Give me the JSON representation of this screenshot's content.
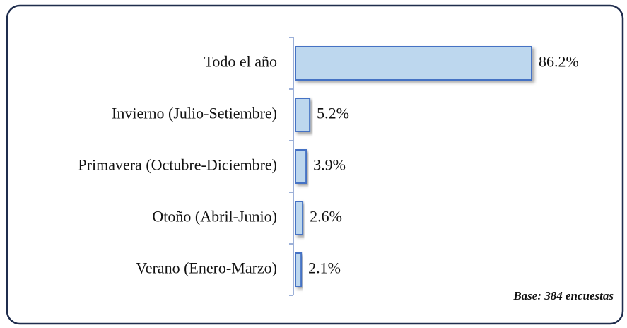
{
  "chart_data": {
    "type": "bar",
    "orientation": "horizontal",
    "categories": [
      "Todo el año",
      "Invierno (Julio-Setiembre)",
      "Primavera (Octubre-Diciembre)",
      "Otoño (Abril-Junio)",
      "Verano (Enero-Marzo)"
    ],
    "values": [
      86.2,
      5.2,
      3.9,
      2.6,
      2.1
    ],
    "value_labels": [
      "86.2%",
      "5.2%",
      "3.9%",
      "2.6%",
      "2.1%"
    ],
    "color": "#bdd7ee",
    "edge_color": "#4472c4",
    "annotation": "Base: 384 encuestas"
  }
}
